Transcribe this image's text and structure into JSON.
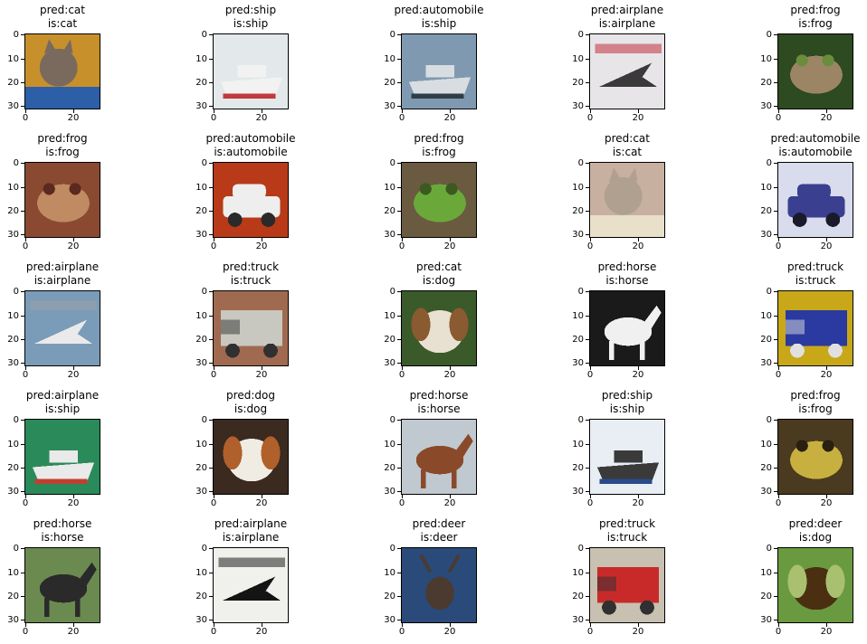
{
  "chart_data": {
    "type": "image-grid",
    "rows": 5,
    "cols": 5,
    "axis": {
      "yticks": [
        0,
        10,
        20,
        30
      ],
      "xticks": [
        0,
        20
      ],
      "xlim": [
        0,
        32
      ],
      "ylim": [
        32,
        0
      ]
    },
    "panels": [
      {
        "pred": "pred:cat",
        "is": "is:cat",
        "subject": "cat",
        "colors": {
          "bg": "#c8902a",
          "main": "#7a6a5e",
          "accent": "#2d5fa8"
        }
      },
      {
        "pred": "pred:ship",
        "is": "is:ship",
        "subject": "ship",
        "colors": {
          "bg": "#e3e8ea",
          "main": "#f2f2f2",
          "accent": "#c23a3a"
        }
      },
      {
        "pred": "pred:automobile",
        "is": "is:ship",
        "subject": "ship",
        "colors": {
          "bg": "#7f9ab0",
          "main": "#d8dde2",
          "accent": "#2e3d4a"
        }
      },
      {
        "pred": "pred:airplane",
        "is": "is:airplane",
        "subject": "airplane",
        "colors": {
          "bg": "#e8e5e9",
          "main": "#3b3a3a",
          "accent": "#c2404d"
        }
      },
      {
        "pred": "pred:frog",
        "is": "is:frog",
        "subject": "frog",
        "colors": {
          "bg": "#2d4a20",
          "main": "#9c8564",
          "accent": "#6a8d3c"
        }
      },
      {
        "pred": "pred:frog",
        "is": "is:frog",
        "subject": "frog",
        "colors": {
          "bg": "#8a4a32",
          "main": "#c08a62",
          "accent": "#5a2a20"
        }
      },
      {
        "pred": "pred:automobile",
        "is": "is:automobile",
        "subject": "car",
        "colors": {
          "bg": "#b83a18",
          "main": "#eeeeee",
          "accent": "#2a2a2a"
        }
      },
      {
        "pred": "pred:frog",
        "is": "is:frog",
        "subject": "frog",
        "colors": {
          "bg": "#6a5a40",
          "main": "#6ba83a",
          "accent": "#3a5a20"
        }
      },
      {
        "pred": "pred:cat",
        "is": "is:cat",
        "subject": "cat",
        "colors": {
          "bg": "#c8b0a0",
          "main": "#b0a090",
          "accent": "#e8e0c8"
        }
      },
      {
        "pred": "pred:automobile",
        "is": "is:automobile",
        "subject": "car",
        "colors": {
          "bg": "#d8dcec",
          "main": "#3a3f90",
          "accent": "#1a1a2a"
        }
      },
      {
        "pred": "pred:airplane",
        "is": "is:airplane",
        "subject": "airplane",
        "colors": {
          "bg": "#7a9cb8",
          "main": "#eaeaea",
          "accent": "#9aa0a8"
        }
      },
      {
        "pred": "pred:truck",
        "is": "is:truck",
        "subject": "truck",
        "colors": {
          "bg": "#a06a50",
          "main": "#c8c8c0",
          "accent": "#303030"
        }
      },
      {
        "pred": "pred:cat",
        "is": "is:dog",
        "subject": "dog",
        "colors": {
          "bg": "#3a5a2a",
          "main": "#e8e0d0",
          "accent": "#8a5a30"
        }
      },
      {
        "pred": "pred:horse",
        "is": "is:horse",
        "subject": "horse",
        "colors": {
          "bg": "#1a1a1a",
          "main": "#f0f0f0",
          "accent": "#606060"
        }
      },
      {
        "pred": "pred:truck",
        "is": "is:truck",
        "subject": "truck",
        "colors": {
          "bg": "#c8a818",
          "main": "#2a3aa0",
          "accent": "#e0e0e0"
        }
      },
      {
        "pred": "pred:airplane",
        "is": "is:ship",
        "subject": "boat",
        "colors": {
          "bg": "#2a8a5a",
          "main": "#eaeaea",
          "accent": "#c04030"
        }
      },
      {
        "pred": "pred:dog",
        "is": "is:dog",
        "subject": "dog",
        "colors": {
          "bg": "#3a2a20",
          "main": "#f0ece4",
          "accent": "#b0602a"
        }
      },
      {
        "pred": "pred:horse",
        "is": "is:horse",
        "subject": "horse",
        "colors": {
          "bg": "#c0c8d0",
          "main": "#8a4a2a",
          "accent": "#2a1a10"
        }
      },
      {
        "pred": "pred:ship",
        "is": "is:ship",
        "subject": "ship",
        "colors": {
          "bg": "#e8eef4",
          "main": "#3a3a3a",
          "accent": "#2a4a8a"
        }
      },
      {
        "pred": "pred:frog",
        "is": "is:frog",
        "subject": "frog",
        "colors": {
          "bg": "#4a3a20",
          "main": "#c8b040",
          "accent": "#2a2010"
        }
      },
      {
        "pred": "pred:horse",
        "is": "is:horse",
        "subject": "horse",
        "colors": {
          "bg": "#6a8a50",
          "main": "#2a2a2a",
          "accent": "#e8e8e8"
        }
      },
      {
        "pred": "pred:airplane",
        "is": "is:airplane",
        "subject": "airplane",
        "colors": {
          "bg": "#f0f0ec",
          "main": "#141414",
          "accent": "#303030"
        }
      },
      {
        "pred": "pred:deer",
        "is": "is:deer",
        "subject": "deer",
        "colors": {
          "bg": "#2a4a7a",
          "main": "#4a3a30",
          "accent": "#1a2a4a"
        }
      },
      {
        "pred": "pred:truck",
        "is": "is:truck",
        "subject": "truck",
        "colors": {
          "bg": "#c8c0b0",
          "main": "#c82a2a",
          "accent": "#303030"
        }
      },
      {
        "pred": "pred:deer",
        "is": "is:dog",
        "subject": "dog",
        "colors": {
          "bg": "#6a9a40",
          "main": "#4a3010",
          "accent": "#a8c070"
        }
      }
    ]
  }
}
